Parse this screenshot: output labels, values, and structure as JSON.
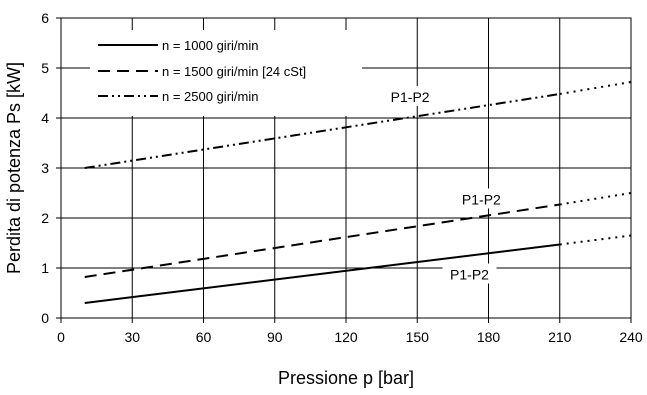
{
  "chart_data": {
    "type": "line",
    "title": "",
    "xlabel": "Pressione p [bar]",
    "ylabel": "Perdita di potenza Ps [kW]",
    "xlim": [
      0,
      240
    ],
    "ylim": [
      0,
      6
    ],
    "xticks": [
      0,
      30,
      60,
      90,
      120,
      150,
      180,
      210,
      240
    ],
    "yticks": [
      0,
      1,
      2,
      3,
      4,
      5,
      6
    ],
    "grid": true,
    "legend_position": "top-left",
    "series": [
      {
        "name": "n = 1000 giri/min",
        "dash": "solid",
        "x": [
          10,
          210
        ],
        "y": [
          0.3,
          1.47
        ],
        "extrapolated": {
          "x": [
            210,
            240
          ],
          "y": [
            1.47,
            1.65
          ]
        },
        "label": "P1-P2"
      },
      {
        "name": "n = 1500 giri/min [24 cSt]",
        "dash": "dashed",
        "x": [
          10,
          210
        ],
        "y": [
          0.82,
          2.27
        ],
        "extrapolated": {
          "x": [
            210,
            240
          ],
          "y": [
            2.27,
            2.5
          ]
        },
        "label": "P1-P2"
      },
      {
        "name": "n = 2500 giri/min",
        "dash": "dash-dot-dot",
        "x": [
          10,
          210
        ],
        "y": [
          3.0,
          4.48
        ],
        "extrapolated": {
          "x": [
            210,
            240
          ],
          "y": [
            4.48,
            4.72
          ]
        },
        "label": "P1-P2"
      }
    ],
    "label_positions_data": [
      {
        "series": 0,
        "x": 172,
        "y": 0.85
      },
      {
        "series": 1,
        "x": 177,
        "y": 2.35
      },
      {
        "series": 2,
        "x": 147,
        "y": 4.4
      }
    ]
  }
}
